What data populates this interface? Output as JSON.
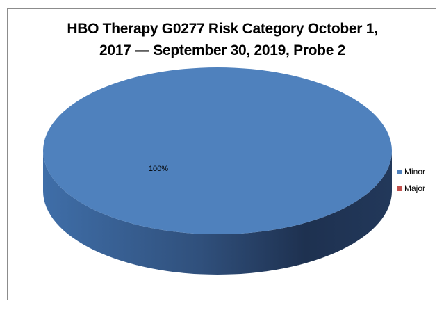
{
  "chart_data": {
    "type": "pie",
    "title": "HBO Therapy G0277 Risk Category October 1, 2017 — September 30, 2019, Probe 2",
    "title_lines": [
      "HBO Therapy G0277 Risk Category October 1,",
      "2017 — September 30, 2019, Probe 2"
    ],
    "style": "3d",
    "categories": [
      "Minor",
      "Major"
    ],
    "values": [
      100,
      0
    ],
    "data_labels": [
      "100%"
    ],
    "colors": [
      "#4f81bd",
      "#c0504d"
    ],
    "legend_position": "right"
  }
}
